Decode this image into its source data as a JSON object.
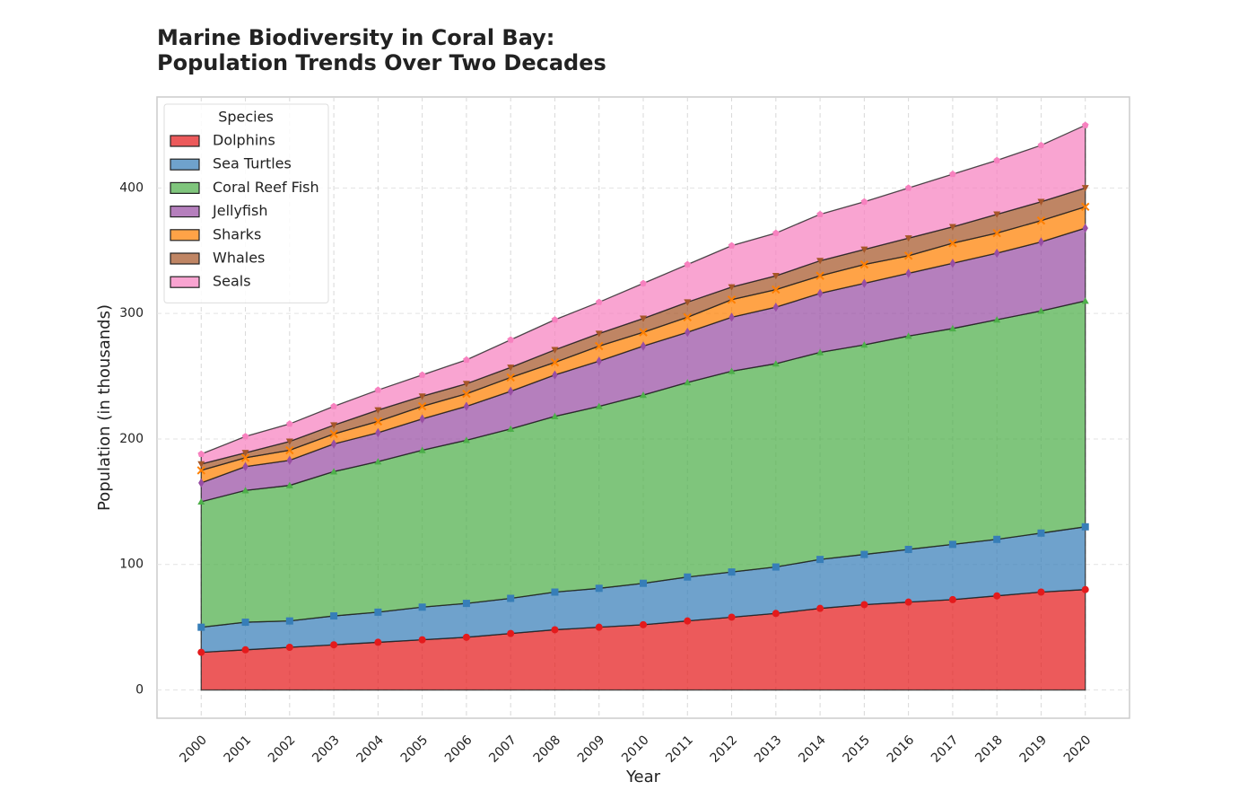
{
  "chart_data": {
    "type": "stacked-area",
    "title": "Marine Biodiversity in Coral Bay:\nPopulation Trends Over Two Decades",
    "x_label": "Year",
    "y_label": "Population (in thousands)",
    "legend_title": "Species",
    "x": [
      2000,
      2001,
      2002,
      2003,
      2004,
      2005,
      2006,
      2007,
      2008,
      2009,
      2010,
      2011,
      2012,
      2013,
      2014,
      2015,
      2016,
      2017,
      2018,
      2019,
      2020
    ],
    "xticks": [
      2000,
      2001,
      2002,
      2003,
      2004,
      2005,
      2006,
      2007,
      2008,
      2009,
      2010,
      2011,
      2012,
      2013,
      2014,
      2015,
      2016,
      2017,
      2018,
      2019,
      2020
    ],
    "xlim": [
      1999,
      2021
    ],
    "ylim": [
      -22.5,
      472.5
    ],
    "yticks": [
      0,
      100,
      200,
      300,
      400
    ],
    "grid": true,
    "legend": "upper left",
    "series": [
      {
        "name": "Dolphins",
        "color": "#e41a1c",
        "marker": "circle",
        "values": [
          30,
          32,
          34,
          36,
          38,
          40,
          42,
          45,
          48,
          50,
          52,
          55,
          58,
          61,
          65,
          68,
          70,
          72,
          75,
          78,
          80
        ]
      },
      {
        "name": "Sea Turtles",
        "color": "#377eb8",
        "marker": "square",
        "values": [
          20,
          22,
          21,
          23,
          24,
          26,
          27,
          28,
          30,
          31,
          33,
          35,
          36,
          37,
          39,
          40,
          42,
          44,
          45,
          47,
          50
        ]
      },
      {
        "name": "Coral Reef Fish",
        "color": "#4daf4a",
        "marker": "triangle",
        "values": [
          100,
          105,
          108,
          115,
          120,
          125,
          130,
          135,
          140,
          145,
          150,
          155,
          160,
          162,
          165,
          167,
          170,
          172,
          175,
          177,
          180
        ]
      },
      {
        "name": "Jellyfish",
        "color": "#984ea3",
        "marker": "diamond",
        "values": [
          15,
          19,
          20,
          22,
          23,
          25,
          27,
          30,
          33,
          36,
          39,
          40,
          43,
          45,
          47,
          49,
          50,
          52,
          53,
          55,
          58
        ]
      },
      {
        "name": "Sharks",
        "color": "#ff7f00",
        "marker": "cross",
        "values": [
          10,
          7,
          8,
          8,
          9,
          10,
          10,
          11,
          10,
          12,
          11,
          12,
          14,
          14,
          14,
          15,
          14,
          16,
          16,
          17,
          17
        ]
      },
      {
        "name": "Whales",
        "color": "#a65628",
        "marker": "tri-down",
        "values": [
          5,
          4,
          7,
          7,
          9,
          8,
          8,
          8,
          10,
          10,
          11,
          12,
          10,
          11,
          12,
          12,
          14,
          13,
          15,
          15,
          15
        ]
      },
      {
        "name": "Seals",
        "color": "#f781bf",
        "marker": "pentagon",
        "values": [
          8,
          13,
          14,
          15,
          16,
          17,
          19,
          22,
          24,
          25,
          28,
          30,
          33,
          34,
          37,
          38,
          40,
          42,
          43,
          45,
          50
        ]
      }
    ]
  }
}
